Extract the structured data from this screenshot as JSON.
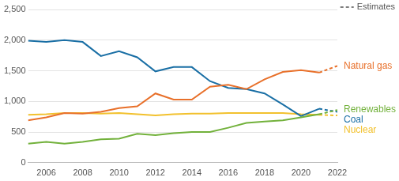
{
  "chart_data": {
    "type": "line",
    "x": [
      2005,
      2006,
      2007,
      2008,
      2009,
      2010,
      2011,
      2012,
      2013,
      2014,
      2015,
      2016,
      2017,
      2018,
      2019,
      2020,
      2021,
      2022
    ],
    "xlim": [
      2005,
      2022
    ],
    "xticks": [
      2006,
      2008,
      2010,
      2012,
      2014,
      2016,
      2018,
      2020,
      2022
    ],
    "ylim": [
      0,
      2500
    ],
    "yticks": [
      0,
      500,
      {
        "value": 1000,
        "label": "1,000"
      },
      {
        "value": 1500,
        "label": "1,500"
      },
      {
        "value": 2000,
        "label": "2,000"
      },
      {
        "value": 2500,
        "label": "2,500"
      }
    ],
    "grid": true,
    "estimates": {
      "label": "Estimates",
      "line_style": "dashed",
      "from": 2021
    },
    "series": [
      {
        "name": "Natural gas",
        "color": "#e8702a",
        "values": [
          690,
          740,
          810,
          800,
          830,
          890,
          920,
          1130,
          1030,
          1030,
          1240,
          1270,
          1200,
          1360,
          1480,
          1510,
          1470,
          1580
        ]
      },
      {
        "name": "Renewables",
        "color": "#72b13b",
        "values": [
          310,
          340,
          310,
          340,
          380,
          390,
          470,
          450,
          480,
          500,
          500,
          570,
          650,
          670,
          690,
          740,
          790,
          860
        ]
      },
      {
        "name": "Coal",
        "color": "#1a6fa5",
        "values": [
          1990,
          1970,
          2000,
          1970,
          1740,
          1820,
          1720,
          1490,
          1560,
          1560,
          1330,
          1220,
          1200,
          1130,
          950,
          760,
          880,
          830
        ]
      },
      {
        "name": "Nuclear",
        "color": "#f2c12e",
        "values": [
          780,
          790,
          810,
          810,
          800,
          810,
          790,
          770,
          790,
          800,
          800,
          810,
          810,
          810,
          810,
          790,
          780,
          770
        ]
      }
    ]
  }
}
